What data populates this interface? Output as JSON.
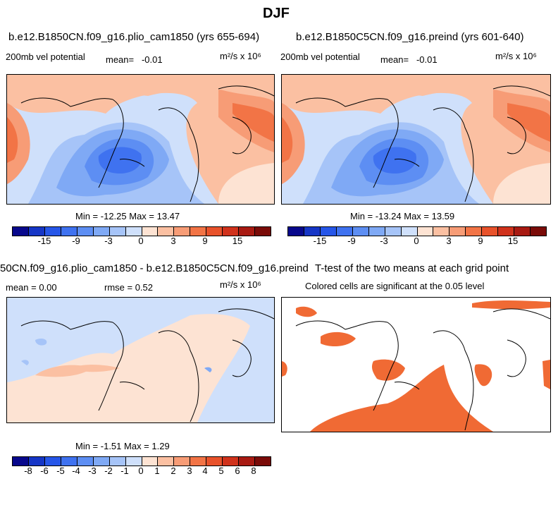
{
  "figure_title": "DJF",
  "panels": {
    "p1": {
      "title": "b.e12.B1850CN.f09_g16.plio_cam1850 (yrs 655-694)",
      "field": "200mb vel potential",
      "mean_label": "mean=",
      "mean_value": "-0.01",
      "units": "m²/s x 10⁶",
      "min_max": "Min = -12.25 Max =  13.47"
    },
    "p2": {
      "title": "b.e12.B1850C5CN.f09_g16.preind (yrs 601-640)",
      "field": "200mb vel potential",
      "mean_label": "mean=",
      "mean_value": "-0.01",
      "units": "m²/s x 10⁶",
      "min_max": "Min = -13.24 Max =  13.59"
    },
    "p3": {
      "title": "50CN.f09_g16.plio_cam1850 - b.e12.B1850C5CN.f09_g16.preind",
      "mean_text": "mean =   0.00",
      "rmse_text": "rmse =    0.52",
      "units": "m²/s x 10⁶",
      "min_max": "Min =  -1.51 Max =   1.29"
    },
    "p4": {
      "title": "T-test of the two means at each grid point",
      "subtitle": "Colored cells are significant at the 0.05 level"
    }
  },
  "colorbars": {
    "top_labels": [
      "-15",
      "-9",
      "-3",
      "0",
      "3",
      "9",
      "15"
    ],
    "diff_labels": [
      "-8",
      "-6",
      "-5",
      "-4",
      "-3",
      "-2",
      "-1",
      "0",
      "1",
      "2",
      "3",
      "4",
      "5",
      "6",
      "8"
    ],
    "colors": [
      "#08088c",
      "#1636c6",
      "#2656e8",
      "#3f72f0",
      "#5d8ef3",
      "#7fa9f5",
      "#a6c4f8",
      "#cfe0fb",
      "#fde3d3",
      "#fbc0a2",
      "#f79c76",
      "#f27446",
      "#e8522b",
      "#d0321c",
      "#a81a12",
      "#7a0b08"
    ]
  },
  "colors": {
    "sig": "#f06a34",
    "land_line": "#000000"
  }
}
